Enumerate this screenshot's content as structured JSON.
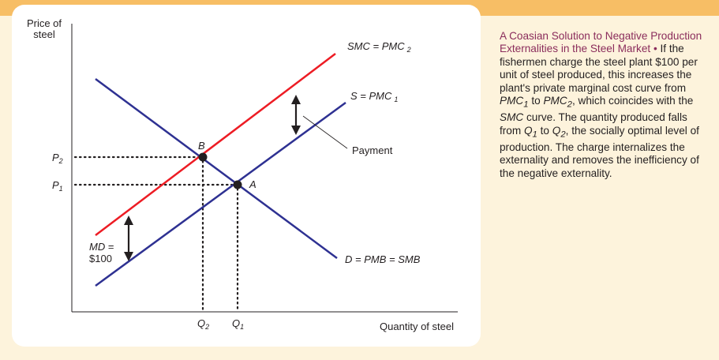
{
  "diagram": {
    "y_axis_label_line1": "Price of",
    "y_axis_label_line2": "steel",
    "x_axis_label": "Quantity of steel",
    "smc_label": "SMC",
    "smc_eq": "= PMC",
    "smc_sub": "2",
    "s_label": "S",
    "s_eq": "= PMC",
    "s_sub": "1",
    "d_label": "D",
    "d_eq": "= PMB",
    "d_eq2": "= SMB",
    "payment_label": "Payment",
    "md_label": "MD",
    "md_eq": "=",
    "md_value": "$100",
    "point_b": "B",
    "point_a": "A",
    "p2": "P",
    "p2_sub": "2",
    "p1": "P",
    "p1_sub": "1",
    "q2": "Q",
    "q2_sub": "2",
    "q1": "Q",
    "q1_sub": "1"
  },
  "caption": {
    "title": "A Coasian Solution to Negative Production Externalities in the Steel Market",
    "bullet": "•",
    "t1": "If the fishermen charge the steel plant $100 per unit of steel produced, this increases the plant's private marginal cost curve from",
    "pmc": "PMC",
    "sub1": "1",
    "to": "to",
    "sub2": "2",
    "t2": ", which coincides with the",
    "smc": "SMC",
    "t3": "curve. The quantity produced falls from",
    "q": "Q",
    "t4": ", the socially optimal level of production. The charge internalizes the externality and removes the inefficiency of the negative externality."
  },
  "colors": {
    "demand_supply": "#2e3192",
    "smc": "#ed1c24",
    "title": "#8a2c5b",
    "band": "#f7be65",
    "background": "#fdf3dc"
  }
}
